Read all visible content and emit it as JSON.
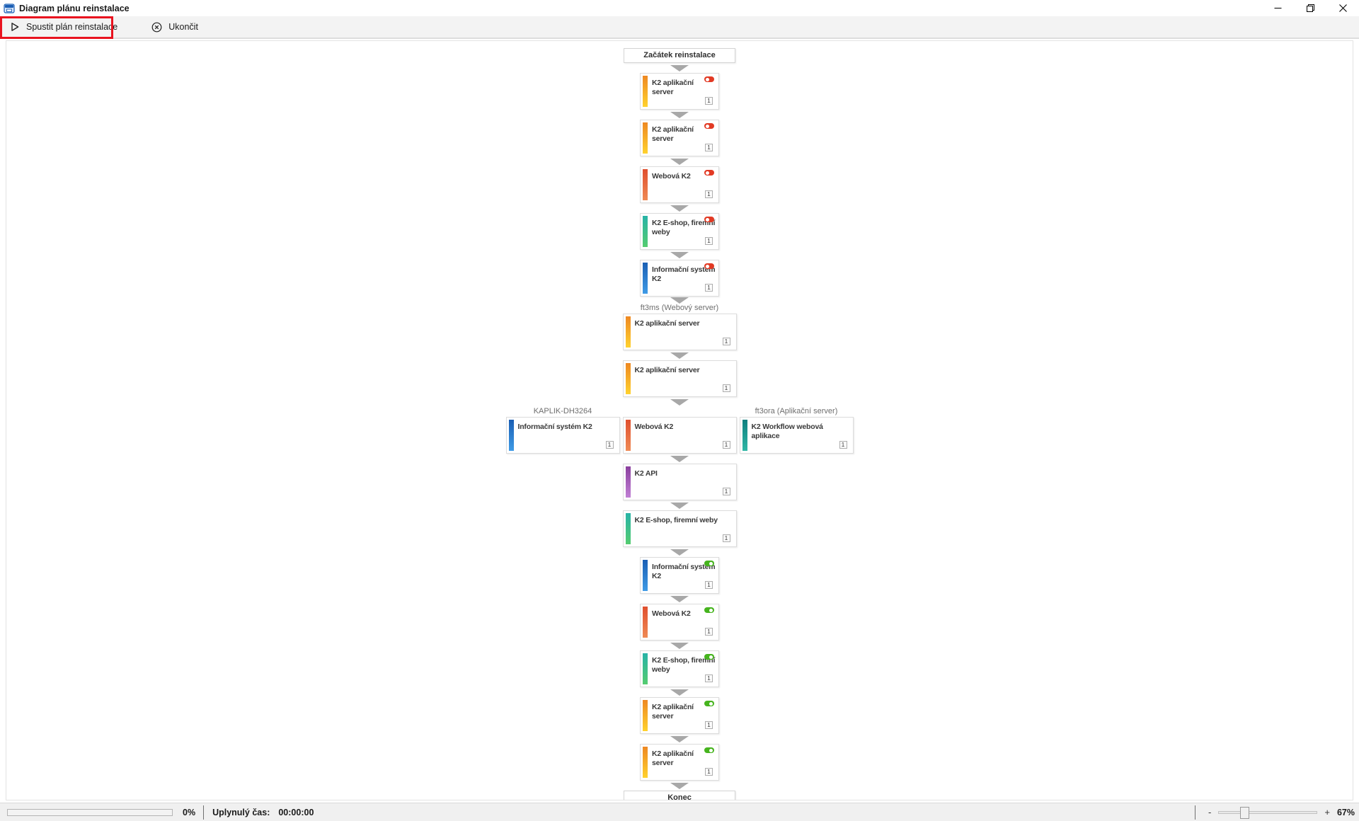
{
  "window": {
    "title": "Diagram plánu reinstalace"
  },
  "toolbar": {
    "run_label": "Spustit plán reinstalace",
    "exit_label": "Ukončit",
    "highlight_color": "#e9131f"
  },
  "diagram": {
    "colors": {
      "app_server": [
        "#ee8822",
        "#ffd22e"
      ],
      "web": [
        "#e04f2e",
        "#ef8a55"
      ],
      "eshop": [
        "#27b3a7",
        "#55cc70"
      ],
      "info_system": [
        "#1a5fb4",
        "#3f9be6"
      ],
      "api": [
        "#8a3f9e",
        "#c07fd4"
      ],
      "workflow": [
        "#0e7f7f",
        "#2fb7a5"
      ]
    },
    "toggle_colors": {
      "off": "#e23a24",
      "on": "#46b41e"
    },
    "badge": "1",
    "flow": [
      {
        "kind": "terminal",
        "title": "Začátek reinstalace"
      },
      {
        "kind": "node",
        "title": "K2 aplikační server",
        "color": "app_server",
        "size": "narrow",
        "toggle": "off"
      },
      {
        "kind": "node",
        "title": "K2 aplikační server",
        "color": "app_server",
        "size": "narrow",
        "toggle": "off"
      },
      {
        "kind": "node",
        "title": "Webová K2",
        "color": "web",
        "size": "narrow",
        "toggle": "off"
      },
      {
        "kind": "node",
        "title": "K2 E-shop, firemní weby",
        "color": "eshop",
        "size": "narrow",
        "toggle": "off"
      },
      {
        "kind": "node",
        "title": "Informační systém K2",
        "color": "info_system",
        "size": "narrow",
        "toggle": "off"
      },
      {
        "kind": "machine-label",
        "text": "ft3ms (Webový server)"
      },
      {
        "kind": "node",
        "title": "K2 aplikační server",
        "color": "app_server",
        "size": "wide",
        "toggle": null
      },
      {
        "kind": "node",
        "title": "K2 aplikační server",
        "color": "app_server",
        "size": "wide",
        "toggle": null
      },
      {
        "kind": "row3",
        "left": {
          "title": "Informační systém K2",
          "color": "info_system",
          "size": "wide",
          "toggle": null,
          "label": "KAPLIK-DH3264"
        },
        "center": {
          "title": "Webová K2",
          "color": "web",
          "size": "wide",
          "toggle": null
        },
        "right": {
          "title": "K2 Workflow webová aplikace",
          "color": "workflow",
          "size": "wide",
          "toggle": null,
          "label": "ft3ora (Aplikační server)"
        }
      },
      {
        "kind": "node",
        "title": "K2 API",
        "color": "api",
        "size": "wide",
        "toggle": null
      },
      {
        "kind": "node",
        "title": "K2 E-shop, firemní weby",
        "color": "eshop",
        "size": "wide",
        "toggle": null
      },
      {
        "kind": "node",
        "title": "Informační systém K2",
        "color": "info_system",
        "size": "narrow",
        "toggle": "on"
      },
      {
        "kind": "node",
        "title": "Webová K2",
        "color": "web",
        "size": "narrow",
        "toggle": "on"
      },
      {
        "kind": "node",
        "title": "K2 E-shop, firemní weby",
        "color": "eshop",
        "size": "narrow",
        "toggle": "on"
      },
      {
        "kind": "node",
        "title": "K2 aplikační server",
        "color": "app_server",
        "size": "narrow",
        "toggle": "on"
      },
      {
        "kind": "node",
        "title": "K2 aplikační server",
        "color": "app_server",
        "size": "narrow",
        "toggle": "on"
      },
      {
        "kind": "terminal",
        "title": "Konec"
      }
    ]
  },
  "statusbar": {
    "progress_percent": "0%",
    "elapsed_label": "Uplynulý čas:",
    "elapsed_value": "00:00:00",
    "zoom_out": "-",
    "zoom_in": "+",
    "zoom_level": "67%"
  }
}
